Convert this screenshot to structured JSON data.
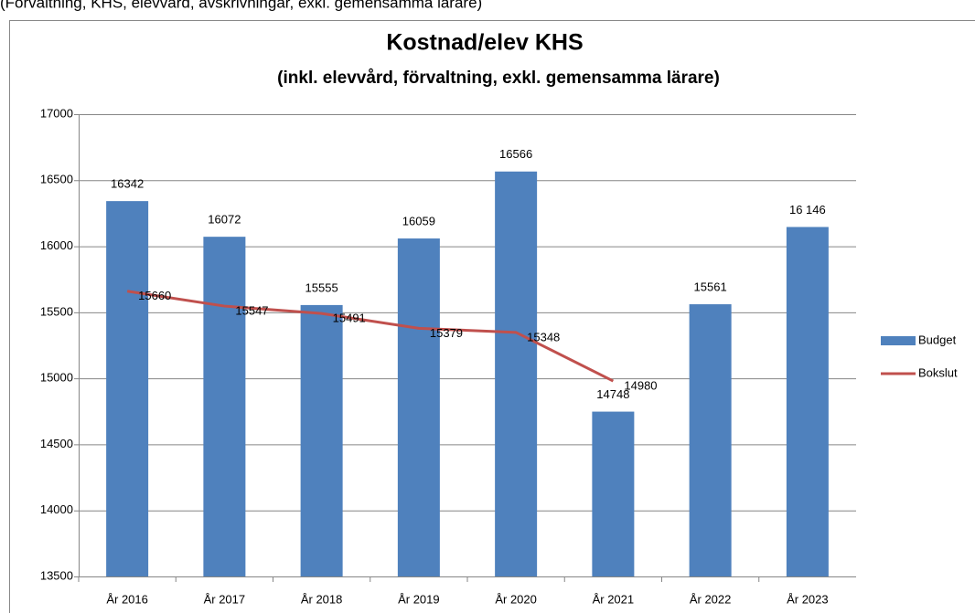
{
  "page_note": "(Förvaltning, KHS, elevvård, avskrivningar, exkl. gemensamma lärare)",
  "chart_data": {
    "type": "bar-line",
    "title": "Kostnad/elev KHS",
    "subtitle": "(inkl. elevvård, förvaltning, exkl. gemensamma lärare)",
    "categories": [
      "År 2016",
      "År 2017",
      "År 2018",
      "År 2019",
      "År 2020",
      "År 2021",
      "År 2022",
      "År 2023"
    ],
    "series": [
      {
        "name": "Budget",
        "type": "bar",
        "color": "#4f81bd",
        "values": [
          16342,
          16072,
          15555,
          16059,
          16566,
          14748,
          15561,
          16146
        ],
        "value_labels": [
          "16342",
          "16072",
          "15555",
          "16059",
          "16566",
          "14748",
          "15561",
          "16 146"
        ]
      },
      {
        "name": "Bokslut",
        "type": "line",
        "color": "#c0504d",
        "values": [
          15660,
          15547,
          15491,
          15379,
          15348,
          14980,
          null,
          null
        ]
      }
    ],
    "ylim": [
      13500,
      17000
    ],
    "yticks": [
      13500,
      14000,
      14500,
      15000,
      15500,
      16000,
      16500,
      17000
    ],
    "grid": true,
    "legend": "right"
  }
}
